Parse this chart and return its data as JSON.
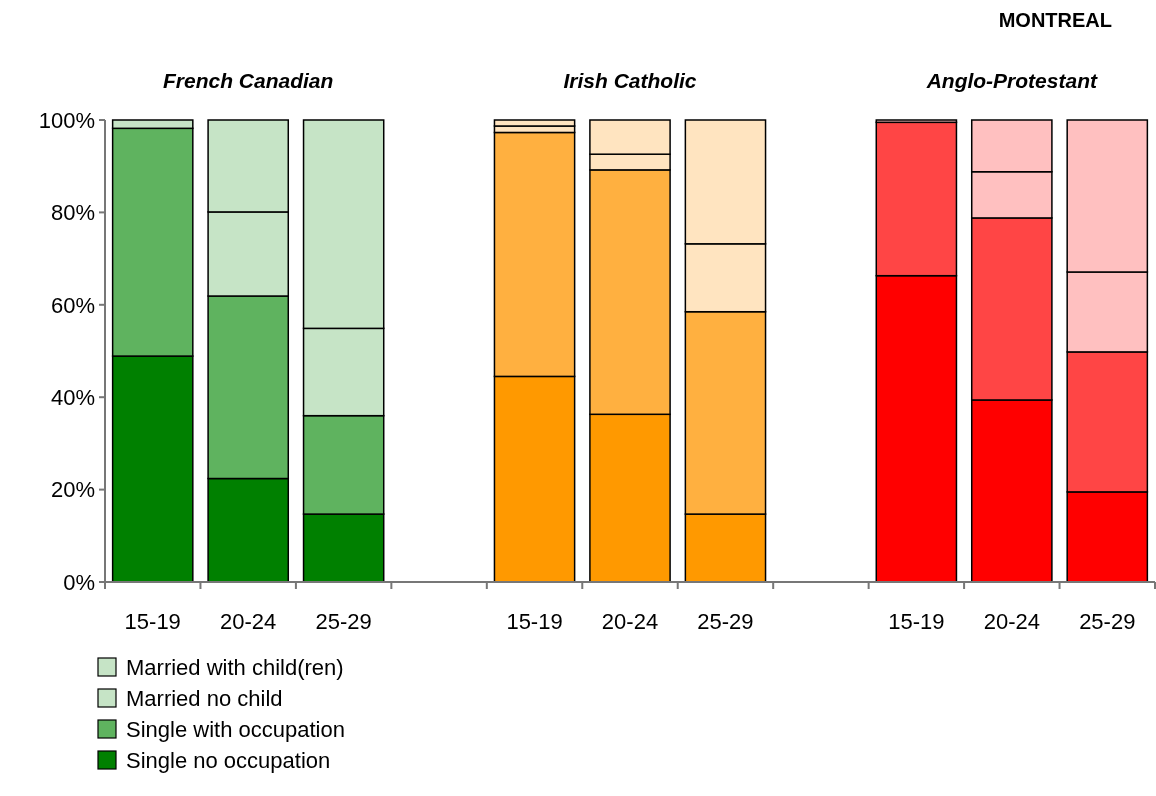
{
  "chart_data": {
    "type": "bar",
    "stacked": true,
    "title": "MONTREAL",
    "annotations": [
      "French Canadian",
      "Irish Catholic",
      "Anglo-Protestant"
    ],
    "categories": [
      "15-19",
      "20-24",
      "25-29",
      null,
      "15-19",
      "20-24",
      "25-29",
      null,
      "15-19",
      "20-24",
      "25-29"
    ],
    "series": [
      {
        "name": "Single no occupation",
        "color": "#008000",
        "colors": [
          "#008000",
          "#008000",
          "#008000",
          null,
          "#ff9900",
          "#ff9900",
          "#ff9900",
          null,
          "#ff0000",
          "#ff0000",
          "#ff0000"
        ],
        "values": [
          48.9,
          22.4,
          14.7,
          null,
          44.5,
          36.3,
          14.7,
          null,
          66.3,
          39.4,
          19.5
        ]
      },
      {
        "name": "Single with occupation",
        "color": "#5fb35f",
        "colors": [
          "#5fb35f",
          "#5fb35f",
          "#5fb35f",
          null,
          "#ffb040",
          "#ffb040",
          "#ffb040",
          null,
          "#ff4545",
          "#ff4545",
          "#ff4545"
        ],
        "values": [
          49.3,
          39.5,
          21.3,
          null,
          52.8,
          52.9,
          43.8,
          null,
          33.2,
          39.4,
          30.3
        ]
      },
      {
        "name": "Married no child",
        "color": "#c6e4c6",
        "colors": [
          "#c6e4c6",
          "#c6e4c6",
          "#c6e4c6",
          null,
          "#ffe4c0",
          "#ffe4c0",
          "#ffe4c0",
          null,
          "#ffc0c0",
          "#ffc0c0",
          "#ffc0c0"
        ],
        "values": [
          1.8,
          18.2,
          18.9,
          null,
          1.4,
          3.4,
          14.7,
          null,
          0.5,
          10.0,
          17.3
        ]
      },
      {
        "name": "Married with child(ren)",
        "color": "#c6e4c6",
        "colors": [
          "#c6e4c6",
          "#c6e4c6",
          "#c6e4c6",
          null,
          "#ffe4c0",
          "#ffe4c0",
          "#ffe4c0",
          null,
          "#ffc0c0",
          "#ffc0c0",
          "#ffc0c0"
        ],
        "values": [
          0,
          19.9,
          45.1,
          null,
          1.3,
          7.4,
          26.8,
          null,
          0,
          11.2,
          32.9
        ]
      }
    ],
    "ylim": [
      0,
      100
    ],
    "yticks": [
      {
        "value": 0,
        "label": "0%"
      },
      {
        "value": 20,
        "label": "20%"
      },
      {
        "value": 40,
        "label": "40%"
      },
      {
        "value": 60,
        "label": "60%"
      },
      {
        "value": 80,
        "label": "80%"
      },
      {
        "value": 100,
        "label": "100%"
      }
    ],
    "grid": false,
    "legend": "bottom left"
  }
}
